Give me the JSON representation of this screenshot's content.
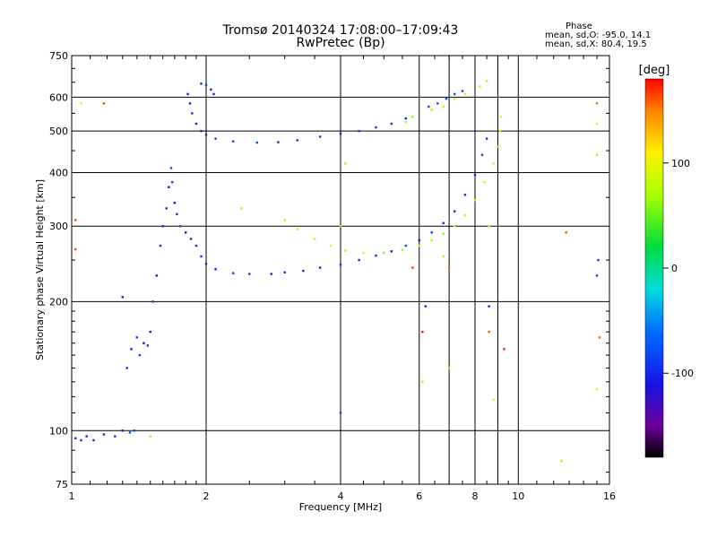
{
  "header": {
    "title_line1": "Tromsø 20140324 17:08:00–17:09:43",
    "title_line2": "RwPretec (Bp)",
    "phase_heading": "Phase",
    "phase_line_o": "mean, sd,O: -95.0, 14.1",
    "phase_line_x": "mean, sd,X:  80.4, 19.5"
  },
  "colorbar": {
    "unit_label": "[deg]",
    "ticks": [
      {
        "value": 100,
        "label": "100"
      },
      {
        "value": 0,
        "label": "0"
      },
      {
        "value": -100,
        "label": "-100"
      }
    ],
    "range": [
      -180,
      180
    ]
  },
  "chart_data": {
    "type": "scatter",
    "title": "Tromsø 20140324 17:08:00–17:09:43 RwPretec (Bp)",
    "xlabel": "Frequency [MHz]",
    "ylabel": "Stationary phase Virtual Height [km]",
    "x_scale": "log",
    "y_scale": "log",
    "xlim": [
      1,
      16
    ],
    "ylim": [
      75,
      750
    ],
    "grid": true,
    "x_ticks": [
      {
        "value": 1,
        "label": "1"
      },
      {
        "value": 2,
        "label": "2"
      },
      {
        "value": 4,
        "label": "4"
      },
      {
        "value": 6,
        "label": "6"
      },
      {
        "value": 8,
        "label": "8"
      },
      {
        "value": 10,
        "label": "10"
      },
      {
        "value": 16,
        "label": "16"
      }
    ],
    "y_ticks": [
      {
        "value": 75,
        "label": "75"
      },
      {
        "value": 100,
        "label": "100"
      },
      {
        "value": 200,
        "label": "200"
      },
      {
        "value": 300,
        "label": "300"
      },
      {
        "value": 400,
        "label": "400"
      },
      {
        "value": 500,
        "label": "500"
      },
      {
        "value": 600,
        "label": "600"
      },
      {
        "value": 750,
        "label": "750"
      }
    ],
    "extra_gridlines_x": [
      7,
      9
    ],
    "series": [
      {
        "mode": "O",
        "color_phase_deg": -95,
        "points": [
          [
            1.02,
            96
          ],
          [
            1.05,
            95
          ],
          [
            1.08,
            97
          ],
          [
            1.12,
            95
          ],
          [
            1.18,
            98
          ],
          [
            1.25,
            97
          ],
          [
            1.3,
            100
          ],
          [
            1.35,
            99
          ],
          [
            1.38,
            100
          ],
          [
            1.33,
            140
          ],
          [
            1.36,
            155
          ],
          [
            1.4,
            165
          ],
          [
            1.42,
            150
          ],
          [
            1.45,
            160
          ],
          [
            1.48,
            158
          ],
          [
            1.5,
            170
          ],
          [
            1.52,
            200
          ],
          [
            1.55,
            230
          ],
          [
            1.58,
            270
          ],
          [
            1.6,
            300
          ],
          [
            1.63,
            330
          ],
          [
            1.65,
            370
          ],
          [
            1.67,
            410
          ],
          [
            1.68,
            380
          ],
          [
            1.7,
            340
          ],
          [
            1.72,
            320
          ],
          [
            1.75,
            300
          ],
          [
            1.8,
            290
          ],
          [
            1.85,
            280
          ],
          [
            1.9,
            270
          ],
          [
            1.95,
            255
          ],
          [
            2.0,
            245
          ],
          [
            2.1,
            238
          ],
          [
            2.3,
            233
          ],
          [
            2.5,
            232
          ],
          [
            2.8,
            232
          ],
          [
            3.0,
            234
          ],
          [
            3.3,
            236
          ],
          [
            3.6,
            240
          ],
          [
            4.0,
            244
          ],
          [
            4.4,
            250
          ],
          [
            4.8,
            256
          ],
          [
            5.2,
            262
          ],
          [
            5.6,
            270
          ],
          [
            6.0,
            278
          ],
          [
            6.4,
            290
          ],
          [
            6.8,
            305
          ],
          [
            7.2,
            325
          ],
          [
            7.6,
            355
          ],
          [
            8.0,
            395
          ],
          [
            8.3,
            440
          ],
          [
            8.5,
            480
          ],
          [
            1.82,
            610
          ],
          [
            1.84,
            580
          ],
          [
            1.86,
            550
          ],
          [
            1.9,
            520
          ],
          [
            1.95,
            500
          ],
          [
            2.0,
            490
          ],
          [
            2.1,
            480
          ],
          [
            2.3,
            473
          ],
          [
            2.6,
            470
          ],
          [
            2.9,
            471
          ],
          [
            3.2,
            476
          ],
          [
            3.6,
            485
          ],
          [
            4.0,
            493
          ],
          [
            4.4,
            500
          ],
          [
            4.8,
            510
          ],
          [
            5.2,
            520
          ],
          [
            5.6,
            535
          ],
          [
            1.95,
            645
          ],
          [
            2.0,
            640
          ],
          [
            2.05,
            625
          ],
          [
            2.08,
            610
          ],
          [
            6.3,
            570
          ],
          [
            6.6,
            580
          ],
          [
            6.9,
            595
          ],
          [
            7.2,
            610
          ],
          [
            7.5,
            620
          ],
          [
            4.0,
            110
          ],
          [
            15.0,
            230
          ],
          [
            15.1,
            250
          ],
          [
            1.3,
            205
          ],
          [
            6.2,
            195
          ],
          [
            8.6,
            195
          ]
        ]
      },
      {
        "mode": "X",
        "color_phase_deg": 80,
        "points": [
          [
            3.0,
            310
          ],
          [
            3.2,
            295
          ],
          [
            3.5,
            280
          ],
          [
            3.8,
            270
          ],
          [
            4.1,
            263
          ],
          [
            4.5,
            260
          ],
          [
            5.0,
            260
          ],
          [
            5.5,
            264
          ],
          [
            6.0,
            270
          ],
          [
            6.4,
            278
          ],
          [
            6.8,
            288
          ],
          [
            7.2,
            300
          ],
          [
            7.6,
            318
          ],
          [
            8.0,
            345
          ],
          [
            8.4,
            380
          ],
          [
            8.8,
            420
          ],
          [
            9.0,
            460
          ],
          [
            9.1,
            500
          ],
          [
            9.15,
            540
          ],
          [
            5.6,
            525
          ],
          [
            5.8,
            540
          ],
          [
            6.4,
            560
          ],
          [
            6.8,
            570
          ],
          [
            7.2,
            595
          ],
          [
            7.6,
            610
          ],
          [
            8.2,
            635
          ],
          [
            8.5,
            655
          ],
          [
            1.05,
            580
          ],
          [
            2.4,
            330
          ],
          [
            4.0,
            300
          ],
          [
            4.1,
            420
          ],
          [
            6.8,
            255
          ],
          [
            8.6,
            300
          ],
          [
            8.8,
            118
          ],
          [
            15.0,
            125
          ],
          [
            15.0,
            440
          ],
          [
            15.0,
            520
          ],
          [
            12.5,
            85
          ],
          [
            6.1,
            130
          ],
          [
            7.0,
            140
          ],
          [
            1.5,
            97
          ]
        ]
      },
      {
        "mode": "outliers",
        "color_phase_deg": 170,
        "points": [
          [
            1.02,
            310
          ],
          [
            1.02,
            265
          ],
          [
            1.18,
            580
          ],
          [
            6.1,
            170
          ],
          [
            8.6,
            170
          ],
          [
            12.8,
            290
          ],
          [
            15.0,
            580
          ],
          [
            9.3,
            155
          ],
          [
            7.0,
            240
          ],
          [
            5.8,
            240
          ],
          [
            15.2,
            165
          ]
        ]
      }
    ]
  }
}
